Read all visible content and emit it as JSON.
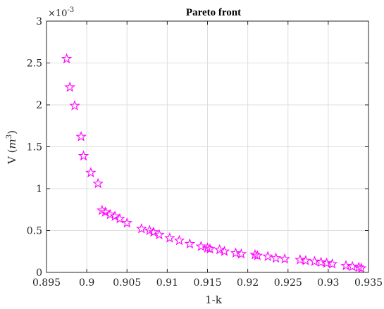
{
  "chart_data": {
    "type": "scatter",
    "title": "Pareto front",
    "xlabel": "1-k",
    "ylabel_prefix": "V  (",
    "ylabel_unit": "m",
    "ylabel_unit_exp": "3",
    "ylabel_suffix": ")",
    "y_multiplier_base": "×10",
    "y_multiplier_exp": "-3",
    "xlim": [
      0.895,
      0.935
    ],
    "ylim": [
      0,
      3
    ],
    "xticks": [
      0.895,
      0.9,
      0.905,
      0.91,
      0.915,
      0.92,
      0.925,
      0.93,
      0.935
    ],
    "xtick_labels": [
      "0.895",
      "0.9",
      "0.905",
      "0.91",
      "0.915",
      "0.92",
      "0.925",
      "0.93",
      "0.935"
    ],
    "yticks": [
      0,
      0.5,
      1,
      1.5,
      2,
      2.5,
      3
    ],
    "ytick_labels": [
      "0",
      "0.5",
      "1",
      "1.5",
      "2",
      "2.5",
      "3"
    ],
    "grid": true,
    "marker": "pentagram",
    "marker_color": "#ff00ff",
    "points": [
      [
        0.8975,
        2.55
      ],
      [
        0.8979,
        2.21
      ],
      [
        0.8985,
        1.99
      ],
      [
        0.8993,
        1.62
      ],
      [
        0.8996,
        1.39
      ],
      [
        0.9005,
        1.19
      ],
      [
        0.9014,
        1.06
      ],
      [
        0.9019,
        0.74
      ],
      [
        0.9023,
        0.72
      ],
      [
        0.9029,
        0.69
      ],
      [
        0.9035,
        0.67
      ],
      [
        0.9041,
        0.64
      ],
      [
        0.905,
        0.59
      ],
      [
        0.9068,
        0.52
      ],
      [
        0.9078,
        0.5
      ],
      [
        0.9083,
        0.48
      ],
      [
        0.909,
        0.45
      ],
      [
        0.9103,
        0.41
      ],
      [
        0.9115,
        0.38
      ],
      [
        0.9128,
        0.34
      ],
      [
        0.9142,
        0.31
      ],
      [
        0.915,
        0.29
      ],
      [
        0.9153,
        0.28
      ],
      [
        0.9165,
        0.27
      ],
      [
        0.9171,
        0.25
      ],
      [
        0.9185,
        0.23
      ],
      [
        0.9192,
        0.22
      ],
      [
        0.9209,
        0.21
      ],
      [
        0.9212,
        0.2
      ],
      [
        0.9225,
        0.19
      ],
      [
        0.9235,
        0.17
      ],
      [
        0.9246,
        0.16
      ],
      [
        0.9265,
        0.15
      ],
      [
        0.9272,
        0.14
      ],
      [
        0.9283,
        0.13
      ],
      [
        0.9291,
        0.12
      ],
      [
        0.9298,
        0.11
      ],
      [
        0.9305,
        0.1
      ],
      [
        0.9322,
        0.08
      ],
      [
        0.933,
        0.07
      ],
      [
        0.9338,
        0.06
      ],
      [
        0.9341,
        0.05
      ]
    ]
  }
}
